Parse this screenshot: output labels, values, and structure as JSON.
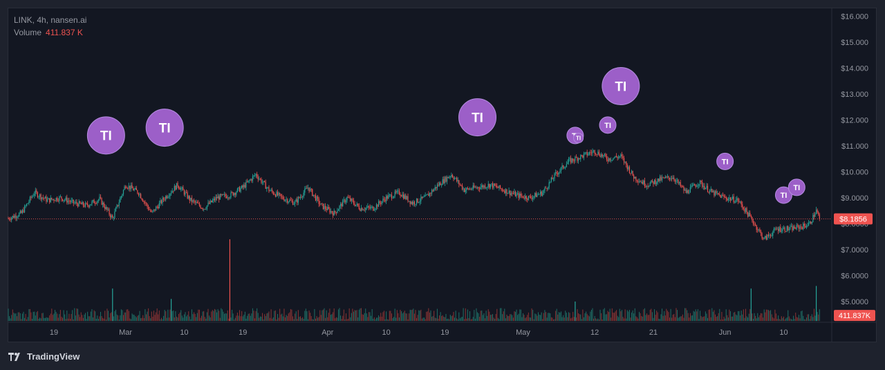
{
  "header": {
    "symbol_line": "LINK, 4h, nansen.ai",
    "volume_label": "Volume",
    "volume_value": "411.837 K"
  },
  "branding": {
    "name": "TradingView"
  },
  "colors": {
    "up": "#26a69a",
    "down": "#ef5350",
    "marker": "#9c5fc8",
    "background": "#131722",
    "axis_text": "#9598a1"
  },
  "chart_data": {
    "type": "candlestick",
    "title": "LINK, 4h, nansen.ai",
    "y_axis": {
      "side": "right",
      "ticks": [
        "$16.000",
        "$15.000",
        "$14.000",
        "$13.000",
        "$12.000",
        "$11.000",
        "$10.000",
        "$9.0000",
        "$8.0000",
        "$7.0000",
        "$6.0000",
        "$5.0000"
      ]
    },
    "ylim": [
      4.2,
      16.3
    ],
    "x_axis": {
      "ticks": [
        "19",
        "Mar",
        "10",
        "19",
        "Apr",
        "10",
        "19",
        "May",
        "12",
        "21",
        "Jun",
        "10"
      ],
      "range": [
        "2024-02-12",
        "2024-06-15"
      ]
    },
    "last_price": {
      "label": "$8.1856",
      "value": 8.1856
    },
    "last_volume": {
      "label": "411.837K"
    },
    "price_path": [
      [
        "2024-02-12",
        8.2
      ],
      [
        "2024-02-14",
        8.4
      ],
      [
        "2024-02-16",
        9.2
      ],
      [
        "2024-02-18",
        8.9
      ],
      [
        "2024-02-20",
        9.0
      ],
      [
        "2024-02-22",
        8.8
      ],
      [
        "2024-02-24",
        8.7
      ],
      [
        "2024-02-26",
        8.95
      ],
      [
        "2024-02-28",
        8.2
      ],
      [
        "2024-03-01",
        9.5
      ],
      [
        "2024-03-03",
        9.2
      ],
      [
        "2024-03-05",
        8.4
      ],
      [
        "2024-03-07",
        9.0
      ],
      [
        "2024-03-09",
        9.5
      ],
      [
        "2024-03-11",
        8.9
      ],
      [
        "2024-03-13",
        8.6
      ],
      [
        "2024-03-15",
        9.0
      ],
      [
        "2024-03-17",
        9.1
      ],
      [
        "2024-03-19",
        9.4
      ],
      [
        "2024-03-21",
        9.9
      ],
      [
        "2024-03-23",
        9.3
      ],
      [
        "2024-03-25",
        9.0
      ],
      [
        "2024-03-27",
        8.8
      ],
      [
        "2024-03-29",
        9.4
      ],
      [
        "2024-03-31",
        8.7
      ],
      [
        "2024-04-02",
        8.4
      ],
      [
        "2024-04-04",
        9.0
      ],
      [
        "2024-04-06",
        8.6
      ],
      [
        "2024-04-08",
        8.6
      ],
      [
        "2024-04-10",
        9.0
      ],
      [
        "2024-04-12",
        9.2
      ],
      [
        "2024-04-14",
        8.8
      ],
      [
        "2024-04-16",
        9.0
      ],
      [
        "2024-04-18",
        9.5
      ],
      [
        "2024-04-20",
        9.9
      ],
      [
        "2024-04-22",
        9.3
      ],
      [
        "2024-04-24",
        9.4
      ],
      [
        "2024-04-26",
        9.5
      ],
      [
        "2024-04-28",
        9.3
      ],
      [
        "2024-04-30",
        9.1
      ],
      [
        "2024-05-02",
        9.0
      ],
      [
        "2024-05-04",
        9.2
      ],
      [
        "2024-05-06",
        9.9
      ],
      [
        "2024-05-08",
        10.4
      ],
      [
        "2024-05-10",
        10.6
      ],
      [
        "2024-05-12",
        10.8
      ],
      [
        "2024-05-14",
        10.5
      ],
      [
        "2024-05-16",
        10.6
      ],
      [
        "2024-05-18",
        9.8
      ],
      [
        "2024-05-20",
        9.5
      ],
      [
        "2024-05-22",
        9.7
      ],
      [
        "2024-05-24",
        9.8
      ],
      [
        "2024-05-26",
        9.2
      ],
      [
        "2024-05-28",
        9.6
      ],
      [
        "2024-05-30",
        9.2
      ],
      [
        "2024-06-01",
        9.0
      ],
      [
        "2024-06-03",
        8.9
      ],
      [
        "2024-06-05",
        8.2
      ],
      [
        "2024-06-07",
        7.4
      ],
      [
        "2024-06-09",
        7.8
      ],
      [
        "2024-06-11",
        7.8
      ],
      [
        "2024-06-13",
        7.9
      ],
      [
        "2024-06-14",
        8.0
      ],
      [
        "2024-06-15",
        8.5
      ],
      [
        "2024-06-15T12",
        8.19
      ]
    ],
    "volume_spikes": [
      [
        "2024-02-28",
        5.5
      ],
      [
        "2024-03-08",
        5.1
      ],
      [
        "2024-03-17",
        7.4
      ],
      [
        "2024-05-09",
        5.0
      ],
      [
        "2024-06-05",
        5.5
      ],
      [
        "2024-06-15",
        5.6
      ]
    ],
    "volume_baseline": 4.25,
    "annotations": [
      {
        "label": "TI",
        "date": "2024-02-27",
        "price": 11.4,
        "size": "large"
      },
      {
        "label": "TI",
        "date": "2024-03-07",
        "price": 11.7,
        "size": "large"
      },
      {
        "label": "TI",
        "date": "2024-04-24",
        "price": 12.1,
        "size": "large"
      },
      {
        "label": "TI",
        "date": "2024-05-09",
        "price": 11.4,
        "size": "small"
      },
      {
        "label": "TI",
        "date": "2024-05-09T12",
        "price": 11.3,
        "size": "tiny"
      },
      {
        "label": "TI",
        "date": "2024-05-14",
        "price": 11.8,
        "size": "small"
      },
      {
        "label": "TI",
        "date": "2024-05-16",
        "price": 13.3,
        "size": "large"
      },
      {
        "label": "TI",
        "date": "2024-06-01",
        "price": 10.4,
        "size": "small"
      },
      {
        "label": "TI",
        "date": "2024-06-10",
        "price": 9.1,
        "size": "small"
      },
      {
        "label": "TI",
        "date": "2024-06-12",
        "price": 9.4,
        "size": "small"
      }
    ]
  }
}
